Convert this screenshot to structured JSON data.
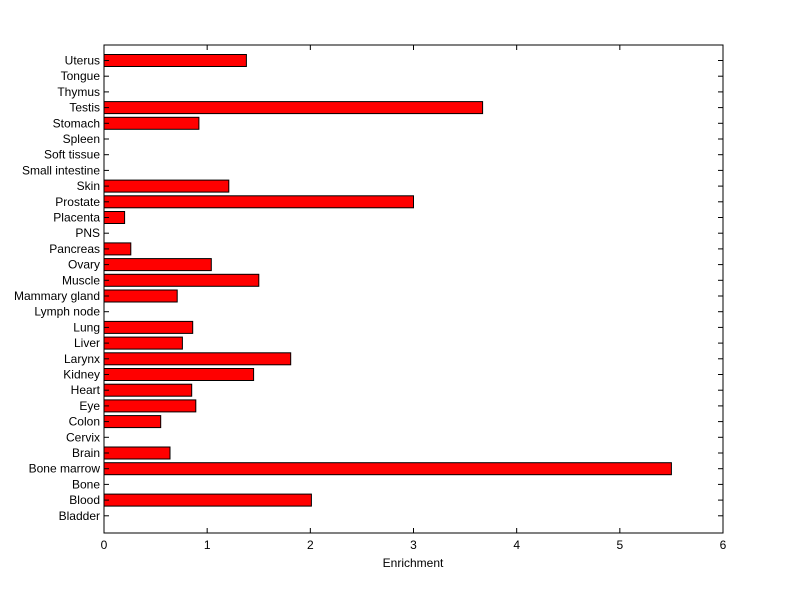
{
  "chart_data": {
    "type": "bar",
    "orientation": "horizontal",
    "categories": [
      "Uterus",
      "Tongue",
      "Thymus",
      "Testis",
      "Stomach",
      "Spleen",
      "Soft tissue",
      "Small intestine",
      "Skin",
      "Prostate",
      "Placenta",
      "PNS",
      "Pancreas",
      "Ovary",
      "Muscle",
      "Mammary gland",
      "Lymph node",
      "Lung",
      "Liver",
      "Larynx",
      "Kidney",
      "Heart",
      "Eye",
      "Colon",
      "Cervix",
      "Brain",
      "Bone marrow",
      "Bone",
      "Blood",
      "Bladder"
    ],
    "values": [
      1.38,
      0,
      0,
      3.67,
      0.92,
      0,
      0,
      0,
      1.21,
      3.0,
      0.2,
      0,
      0.26,
      1.04,
      1.5,
      0.71,
      0,
      0.86,
      0.76,
      1.81,
      1.45,
      0.85,
      0.89,
      0.55,
      0,
      0.64,
      5.5,
      0,
      2.01,
      0
    ],
    "xlabel": "Enrichment",
    "ylabel": "",
    "title": "",
    "xlim": [
      0,
      6
    ],
    "xticks": [
      "0",
      "1",
      "2",
      "3",
      "4",
      "5",
      "6"
    ],
    "grid": false,
    "colors": {
      "bar_fill": "#ff0000",
      "bar_edge": "#000000",
      "axes": "#000000",
      "background": "#ffffff"
    }
  }
}
